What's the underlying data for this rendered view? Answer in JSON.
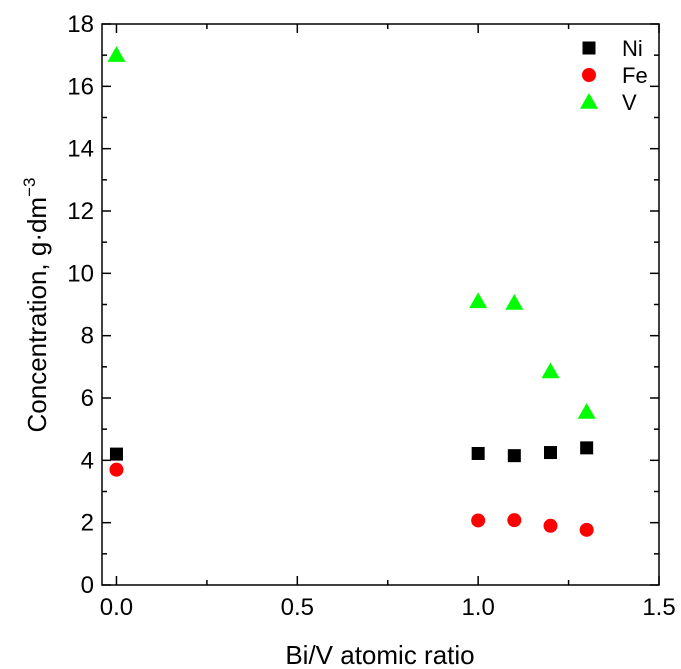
{
  "chart_data": {
    "type": "scatter",
    "xlabel": "Bi/V atomic ratio",
    "ylabel": "Concentration, g·dm",
    "ylabel_superscript": "−3",
    "xlim": [
      -0.04,
      1.5
    ],
    "ylim": [
      0,
      18
    ],
    "x_ticks": [
      0.0,
      0.5,
      1.0,
      1.5
    ],
    "x_tick_labels": [
      "0.0",
      "0.5",
      "1.0",
      "1.5"
    ],
    "y_ticks": [
      0,
      2,
      4,
      6,
      8,
      10,
      12,
      14,
      16,
      18
    ],
    "y_tick_labels": [
      "0",
      "2",
      "4",
      "6",
      "8",
      "10",
      "12",
      "14",
      "16",
      "18"
    ],
    "grid": false,
    "legend_position": "top-right",
    "series": [
      {
        "name": "Ni",
        "marker": "square",
        "color": "#000000",
        "x": [
          0.0,
          1.0,
          1.1,
          1.2,
          1.3
        ],
        "y": [
          4.2,
          4.22,
          4.15,
          4.25,
          4.4
        ]
      },
      {
        "name": "Fe",
        "marker": "circle",
        "color": "#ff0000",
        "x": [
          0.0,
          1.0,
          1.1,
          1.2,
          1.3
        ],
        "y": [
          3.7,
          2.07,
          2.08,
          1.9,
          1.77
        ]
      },
      {
        "name": "V",
        "marker": "triangle",
        "color": "#00ff00",
        "x": [
          0.0,
          1.0,
          1.1,
          1.2,
          1.3
        ],
        "y": [
          17.0,
          9.1,
          9.05,
          6.85,
          5.55
        ]
      }
    ]
  }
}
